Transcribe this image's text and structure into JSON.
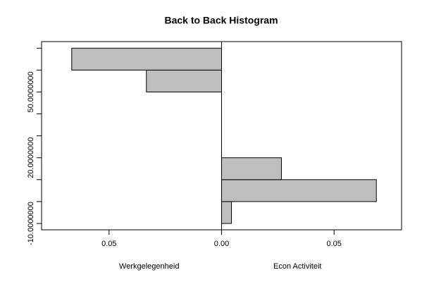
{
  "chart_data": {
    "type": "back_to_back_histogram",
    "title": "Back to Back Histogram",
    "bins": [
      -10,
      0,
      10,
      20,
      30,
      40,
      50,
      60,
      70
    ],
    "series": [
      {
        "name": "Werkgelegenheid",
        "color": "#bebebe",
        "values": [
          0,
          0,
          0,
          0,
          0,
          0,
          0.0334,
          0.0666
        ]
      },
      {
        "name": "Econ Activiteit",
        "color": "#bebebe",
        "values": [
          0.0044,
          0.0688,
          0.0266,
          0,
          0,
          0,
          0,
          0
        ]
      }
    ],
    "xlim": [
      -0.08,
      0.08
    ],
    "xticks": [
      {
        "value": -0.05,
        "label": "0.05"
      },
      {
        "value": 0,
        "label": "0.00"
      },
      0.05
    ],
    "ylim": [
      -12.9,
      73
    ],
    "yticks": [
      -10,
      0,
      10,
      20,
      30,
      40,
      50,
      60,
      70
    ],
    "ytick_labels": [
      {
        "value": -10,
        "label": "-10.0000000"
      },
      {
        "value": 20,
        "label": "20.0000000"
      },
      {
        "value": 50,
        "label": "50.0000000"
      }
    ]
  }
}
